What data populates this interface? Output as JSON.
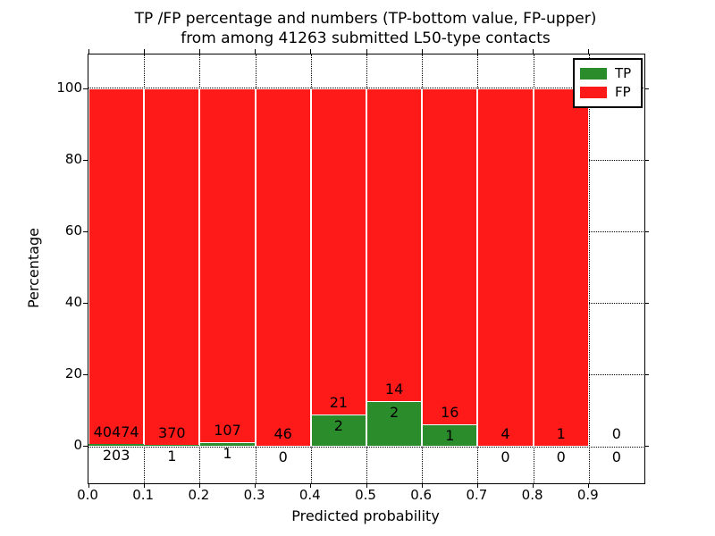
{
  "figure_title": {
    "line1": "TP /FP percentage and numbers (TP-bottom value, FP-upper)",
    "line2": "from among 41263 submitted L50-type contacts"
  },
  "axes": {
    "x_label": "Predicted probability",
    "y_label": "Percentage",
    "x_tick_labels": [
      "0.0",
      "0.1",
      "0.2",
      "0.3",
      "0.4",
      "0.5",
      "0.6",
      "0.7",
      "0.8",
      "0.9"
    ],
    "x_tick_values": [
      0,
      0.1,
      0.2,
      0.3,
      0.4,
      0.5,
      0.6,
      0.7,
      0.8,
      0.9
    ],
    "y_tick_labels": [
      "0",
      "20",
      "40",
      "60",
      "80",
      "100"
    ],
    "y_tick_values": [
      0,
      20,
      40,
      60,
      80,
      100
    ],
    "xlim": [
      0,
      1.0
    ],
    "ylim": [
      -10.5,
      109.5
    ],
    "grid_style": "dotted"
  },
  "legend": {
    "position": "upper-right",
    "entries": [
      {
        "label": "TP",
        "color": "#2a8c2a"
      },
      {
        "label": "FP",
        "color": "#ff1a1a"
      }
    ]
  },
  "chart_data": {
    "type": "bar",
    "stacked": true,
    "normalized_to_percent": 100,
    "title": "TP /FP percentage and numbers (TP-bottom value, FP-upper) from among 41263 submitted L50-type contacts",
    "xlabel": "Predicted probability",
    "ylabel": "Percentage",
    "xlim": [
      0,
      1.0
    ],
    "ylim": [
      -10.5,
      109.5
    ],
    "bin_edges": [
      0.0,
      0.1,
      0.2,
      0.3,
      0.4,
      0.5,
      0.6,
      0.7,
      0.8,
      0.9,
      1.0
    ],
    "categories": [
      "0.0-0.1",
      "0.1-0.2",
      "0.2-0.3",
      "0.3-0.4",
      "0.4-0.5",
      "0.5-0.6",
      "0.6-0.7",
      "0.7-0.8",
      "0.8-0.9",
      "0.9-1.0"
    ],
    "series": [
      {
        "name": "TP",
        "color": "#2a8c2a",
        "counts": [
          203,
          1,
          1,
          0,
          2,
          2,
          1,
          0,
          0,
          0
        ],
        "pct": [
          0.5,
          0.27,
          0.93,
          0,
          8.7,
          12.5,
          5.88,
          0,
          0,
          0
        ]
      },
      {
        "name": "FP",
        "color": "#ff1a1a",
        "counts": [
          40474,
          370,
          107,
          46,
          21,
          14,
          16,
          4,
          1,
          0
        ],
        "pct": [
          99.5,
          99.73,
          99.07,
          100,
          91.3,
          87.5,
          94.12,
          100,
          100,
          0
        ]
      }
    ],
    "total_contacts": 41263
  }
}
